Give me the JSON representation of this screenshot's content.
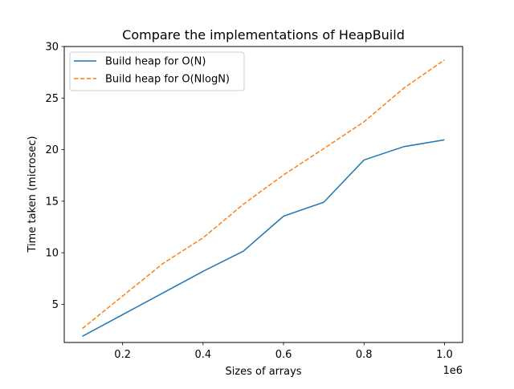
{
  "chart_data": {
    "type": "line",
    "title": "Compare the implementations of HeapBuild",
    "xlabel": "Sizes of arrays",
    "ylabel": "Time taken (microsec)",
    "x_offset_label": "1e6",
    "xlim": [
      55000,
      1045000
    ],
    "ylim": [
      1.3,
      30
    ],
    "x": [
      100000,
      200000,
      300000,
      400000,
      500000,
      600000,
      700000,
      800000,
      900000,
      1000000
    ],
    "x_ticks": [
      {
        "value": 200000,
        "label": "0.2"
      },
      {
        "value": 400000,
        "label": "0.4"
      },
      {
        "value": 600000,
        "label": "0.6"
      },
      {
        "value": 800000,
        "label": "0.8"
      },
      {
        "value": 1000000,
        "label": "1.0"
      }
    ],
    "y_ticks": [
      {
        "value": 5,
        "label": "5"
      },
      {
        "value": 10,
        "label": "10"
      },
      {
        "value": 15,
        "label": "15"
      },
      {
        "value": 20,
        "label": "20"
      },
      {
        "value": 25,
        "label": "25"
      },
      {
        "value": 30,
        "label": "30"
      }
    ],
    "grid": false,
    "legend_position": "top-left",
    "series": [
      {
        "name": "Build heap for O(N)",
        "color": "#1f77b4",
        "style": "solid",
        "values": [
          1.9,
          4.0,
          6.1,
          8.2,
          10.15,
          13.55,
          14.9,
          19.0,
          20.3,
          20.95
        ]
      },
      {
        "name": "Build heap for O(NlogN)",
        "color": "#ff7f0e",
        "style": "dashed",
        "values": [
          2.65,
          5.8,
          8.95,
          11.45,
          14.7,
          17.55,
          20.1,
          22.7,
          26.0,
          28.7
        ]
      }
    ]
  }
}
